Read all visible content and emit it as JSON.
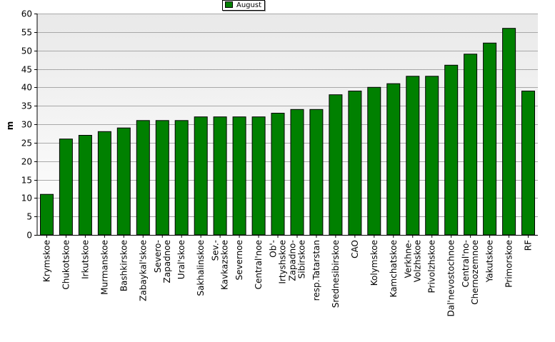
{
  "chart_data": {
    "type": "bar",
    "title": "",
    "xlabel": "",
    "ylabel": "m",
    "ylim": [
      0,
      60
    ],
    "ytick_step": 5,
    "grid": true,
    "legend_position": "top-center",
    "colors": {
      "bar": "#008000",
      "bar_edge": "#000000",
      "plot_bg_top": "#e9e9e9",
      "plot_bg_bottom": "#ffffff"
    },
    "series": [
      {
        "name": "August",
        "values": [
          11,
          26,
          27,
          28,
          29,
          31,
          31,
          31,
          32,
          32,
          32,
          32,
          33,
          34,
          34,
          38,
          39,
          40,
          41,
          43,
          43,
          46,
          49,
          52,
          56,
          39
        ]
      }
    ],
    "categories": [
      [
        "Krymskoe"
      ],
      [
        "Chukotskoe"
      ],
      [
        "Irkutskoe"
      ],
      [
        "Murmanskoe"
      ],
      [
        "Bashkirskoe"
      ],
      [
        "Zabaykal'skoe"
      ],
      [
        "Severo-",
        "Zapadnoe"
      ],
      [
        "Ural'skoe"
      ],
      [
        "Sakhalinskoe"
      ],
      [
        "Sev.-",
        "Kavkazskoe"
      ],
      [
        "Severnoe"
      ],
      [
        "Central'noe"
      ],
      [
        "Ob'-",
        "Irtyshskoe"
      ],
      [
        "Zapadno-",
        "Sibirskoe"
      ],
      [
        "resp.Tatarstan"
      ],
      [
        "Srednesibirskoe"
      ],
      [
        "CAO"
      ],
      [
        "Kolymskoe"
      ],
      [
        "Kamchatskoe"
      ],
      [
        "Verkhne-",
        "Volzhskoe"
      ],
      [
        "Privolzhskoe"
      ],
      [
        "Dal'nevostochnoe"
      ],
      [
        "Central'no-",
        "Chernozemnoe"
      ],
      [
        "Yakutskoe"
      ],
      [
        "Primorskoe"
      ],
      [
        "RF"
      ]
    ]
  }
}
